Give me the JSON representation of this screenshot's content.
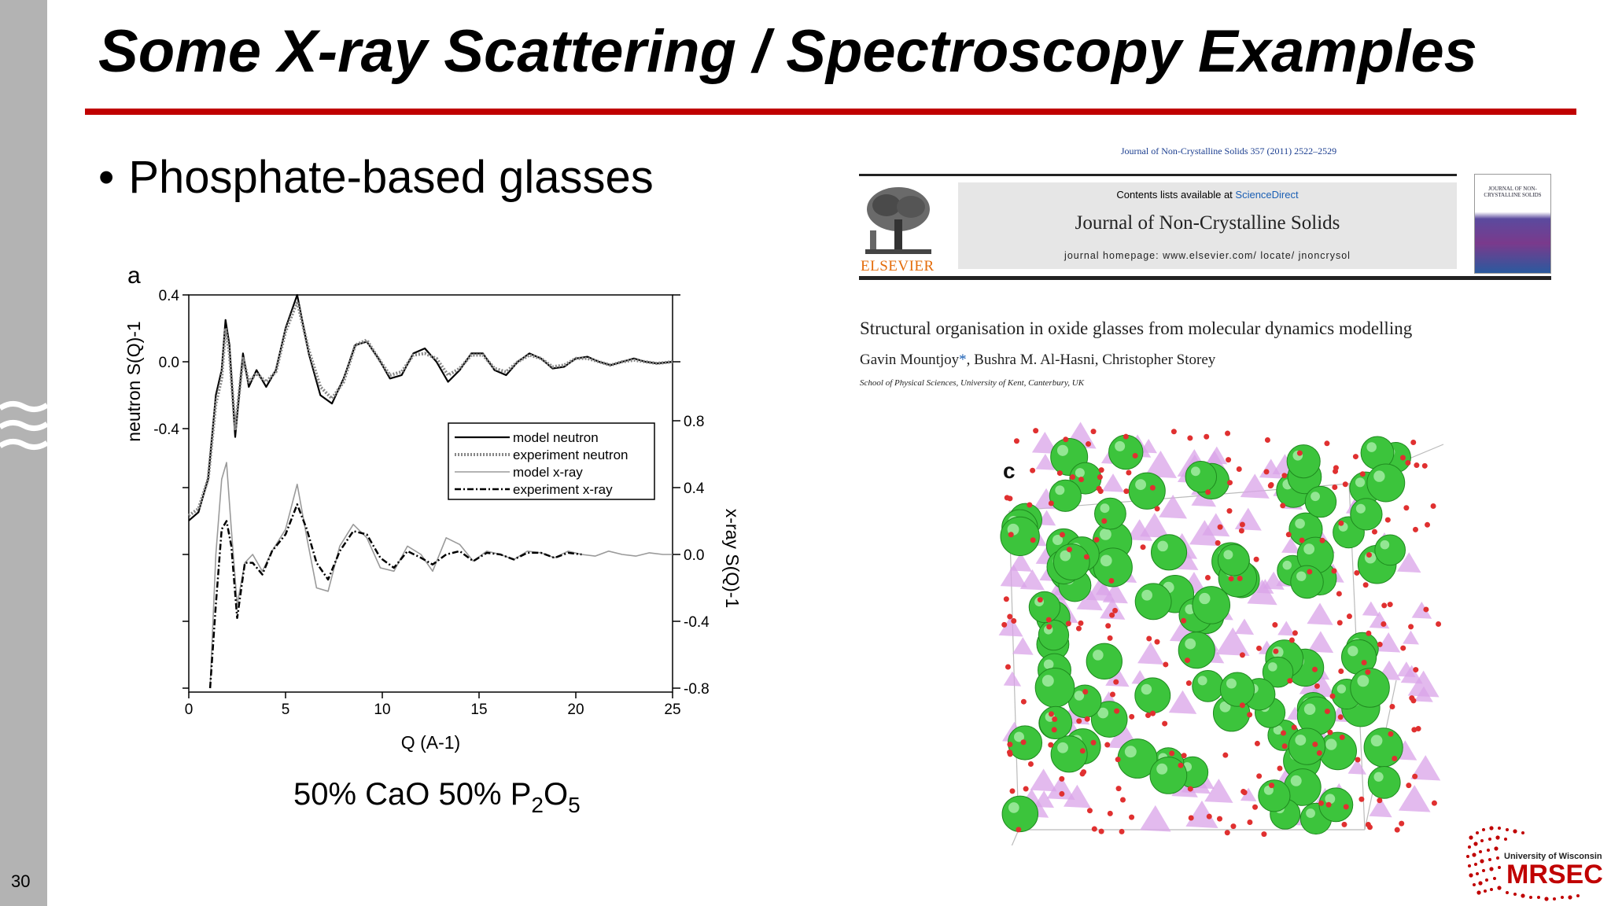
{
  "slide": {
    "title": "Some X-ray Scattering / Spectroscopy Examples",
    "bullet": "Phosphate-based glasses",
    "bullet_marker": "•",
    "slide_number": "30",
    "accent_color": "#c00000",
    "caption": {
      "a": "50% CaO 50% P",
      "b": "2",
      "c": "O",
      "d": "5"
    }
  },
  "paper": {
    "citation": "Journal of Non-Crystalline Solids 357 (2011) 2522–2529",
    "contents_prefix": "Contents lists available at ",
    "contents_link": "ScienceDirect",
    "journal_name": "Journal of Non-Crystalline Solids",
    "homepage": "journal homepage: www.elsevier.com/ locate/ jnoncrysol",
    "publisher": "ELSEVIER",
    "cover_text": "JOURNAL OF NON-CRYSTALLINE SOLIDS",
    "title": "Structural organisation in oxide glasses from molecular dynamics modelling",
    "author_first": "Gavin Mountjoy",
    "author_star": "*",
    "author_rest": ", Bushra M. Al-Hasni, Christopher Storey",
    "affiliation": "School of Physical Sciences, University of Kent, Canterbury, UK",
    "panel_label": "c"
  },
  "logo": {
    "line1": "University of Wisconsin",
    "line2": "MRSEC"
  },
  "chart_data": {
    "type": "line",
    "panel_label": "a",
    "xlabel": "Q (A-1)",
    "ylabel_left": "neutron S(Q)-1",
    "ylabel_right": "x-ray S(Q)-1",
    "xlim": [
      0,
      25
    ],
    "xticks": [
      "0",
      "5",
      "10",
      "15",
      "20",
      "25"
    ],
    "yticks_left": [
      "0.4",
      "0.0",
      "-0.4"
    ],
    "yticks_right": [
      "0.8",
      "0.4",
      "0.0",
      "-0.4",
      "-0.8"
    ],
    "legend_position": "center-right",
    "legend": [
      "model neutron",
      "experiment neutron",
      "model x-ray",
      "experiment x-ray"
    ],
    "series": [
      {
        "name": "model neutron",
        "color": "#000000",
        "axis": "left",
        "x": [
          0,
          0.5,
          1.0,
          1.4,
          1.7,
          1.9,
          2.1,
          2.4,
          2.8,
          3.1,
          3.5,
          4.0,
          4.5,
          5.0,
          5.6,
          6.2,
          6.8,
          7.4,
          8.0,
          8.6,
          9.2,
          9.8,
          10.4,
          11.0,
          11.6,
          12.2,
          12.8,
          13.4,
          14.0,
          14.6,
          15.2,
          15.8,
          16.4,
          17.0,
          17.6,
          18.2,
          18.8,
          19.4,
          20.0,
          20.6,
          21.2,
          21.8,
          22.4,
          23.0,
          23.6,
          24.2,
          25.0
        ],
        "y": [
          -0.95,
          -0.9,
          -0.7,
          -0.2,
          -0.05,
          0.25,
          0.1,
          -0.45,
          0.05,
          -0.15,
          -0.05,
          -0.15,
          -0.05,
          0.2,
          0.4,
          0.05,
          -0.2,
          -0.25,
          -0.1,
          0.1,
          0.12,
          0.02,
          -0.1,
          -0.08,
          0.05,
          0.08,
          0.0,
          -0.12,
          -0.05,
          0.05,
          0.05,
          -0.05,
          -0.08,
          0.0,
          0.05,
          0.02,
          -0.04,
          -0.03,
          0.02,
          0.03,
          0.0,
          -0.02,
          0.0,
          0.02,
          0.0,
          -0.01,
          0.0
        ]
      },
      {
        "name": "experiment neutron",
        "color": "#888888",
        "axis": "left",
        "x": [
          0,
          0.5,
          1.0,
          1.4,
          1.7,
          1.9,
          2.1,
          2.4,
          2.8,
          3.1,
          3.5,
          4.0,
          4.5,
          5.0,
          5.6,
          6.2,
          6.8,
          7.4,
          8.0,
          8.6,
          9.2,
          9.8,
          10.4,
          11.0,
          11.6,
          12.2,
          12.8,
          13.4,
          14.0,
          14.6,
          15.2,
          15.8,
          16.4,
          17.0,
          17.6,
          18.2,
          18.8,
          19.4,
          20.0,
          20.6,
          21.2,
          21.8,
          22.4,
          23.0,
          23.6,
          24.2,
          25.0
        ],
        "y": [
          -0.92,
          -0.88,
          -0.7,
          -0.25,
          -0.1,
          0.2,
          0.05,
          -0.4,
          0.02,
          -0.12,
          -0.07,
          -0.12,
          -0.06,
          0.18,
          0.36,
          0.07,
          -0.15,
          -0.22,
          -0.12,
          0.1,
          0.13,
          0.02,
          -0.08,
          -0.06,
          0.04,
          0.05,
          0.02,
          -0.08,
          -0.04,
          0.04,
          0.04,
          -0.04,
          -0.06,
          0.0,
          0.04,
          0.02,
          -0.03,
          -0.02,
          0.02,
          0.02,
          0.0,
          -0.02,
          0.0,
          0.01,
          0.0,
          -0.01,
          0.0
        ]
      },
      {
        "name": "model x-ray",
        "color": "#9a9a9a",
        "axis": "right",
        "x": [
          1.1,
          1.4,
          1.7,
          1.95,
          2.2,
          2.5,
          2.9,
          3.3,
          3.8,
          4.3,
          5.0,
          5.6,
          6.1,
          6.6,
          7.2,
          7.8,
          8.5,
          9.2,
          9.9,
          10.6,
          11.3,
          12.0,
          12.6,
          13.3,
          14.0,
          14.7,
          15.4,
          16.1,
          16.8,
          17.5,
          18.2,
          18.9,
          19.6,
          20.3,
          21.0,
          21.7,
          22.4,
          23.1,
          23.8,
          24.5,
          25.0
        ],
        "y": [
          -0.8,
          0.0,
          0.45,
          0.55,
          0.15,
          -0.3,
          -0.05,
          0.0,
          -0.1,
          0.02,
          0.15,
          0.42,
          0.1,
          -0.2,
          -0.22,
          0.05,
          0.18,
          0.1,
          -0.08,
          -0.1,
          0.05,
          0.0,
          -0.1,
          0.1,
          0.06,
          -0.04,
          0.02,
          0.0,
          -0.03,
          0.02,
          0.01,
          -0.02,
          0.02,
          0.0,
          -0.01,
          0.02,
          0.0,
          -0.01,
          0.01,
          0.0,
          0.0
        ]
      },
      {
        "name": "experiment x-ray",
        "color": "#000000",
        "axis": "right",
        "x": [
          1.1,
          1.4,
          1.7,
          1.95,
          2.2,
          2.5,
          2.9,
          3.3,
          3.8,
          4.3,
          5.0,
          5.6,
          6.1,
          6.6,
          7.2,
          7.8,
          8.5,
          9.2,
          9.9,
          10.6,
          11.3,
          12.0,
          12.6,
          13.3,
          14.0,
          14.7,
          15.4,
          16.1,
          16.8,
          17.5,
          18.2,
          18.9,
          19.6,
          20.3
        ],
        "y": [
          -0.8,
          -0.3,
          0.15,
          0.2,
          0.05,
          -0.38,
          -0.05,
          -0.05,
          -0.12,
          0.02,
          0.12,
          0.3,
          0.15,
          -0.05,
          -0.15,
          0.02,
          0.14,
          0.12,
          -0.02,
          -0.08,
          0.02,
          -0.02,
          -0.06,
          0.0,
          0.02,
          -0.04,
          0.01,
          0.0,
          -0.03,
          0.01,
          0.01,
          -0.02,
          0.01,
          0.0
        ]
      }
    ]
  }
}
